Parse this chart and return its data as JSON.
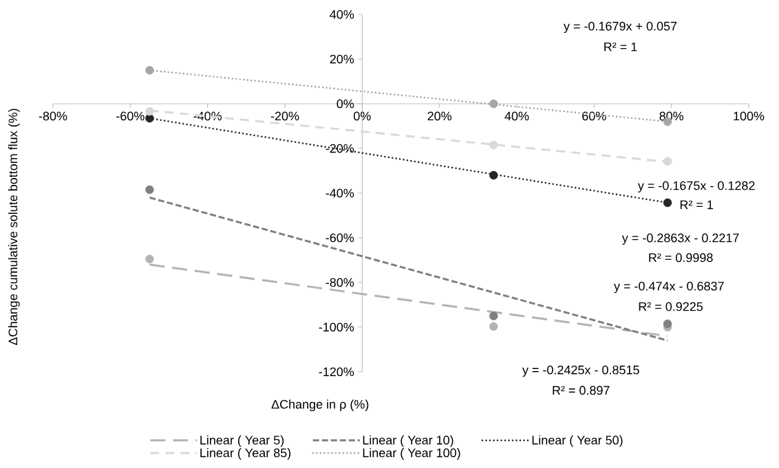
{
  "chart_data": {
    "type": "scatter",
    "xlabel": "ΔChange in ρ (%)",
    "ylabel": "ΔChange cumulative solute bottom flux (%)",
    "xlim": [
      -80,
      100
    ],
    "ylim": [
      -120,
      40
    ],
    "xticks": [
      {
        "value": -80,
        "label": "-80%"
      },
      {
        "value": -60,
        "label": "-60%"
      },
      {
        "value": -40,
        "label": "-40%"
      },
      {
        "value": -20,
        "label": "-20%"
      },
      {
        "value": 0,
        "label": "0%"
      },
      {
        "value": 20,
        "label": "20%"
      },
      {
        "value": 40,
        "label": "40%"
      },
      {
        "value": 60,
        "label": "60%"
      },
      {
        "value": 80,
        "label": "80%"
      },
      {
        "value": 100,
        "label": "100%"
      }
    ],
    "yticks": [
      {
        "value": -120,
        "label": "-120%"
      },
      {
        "value": -100,
        "label": "-100%"
      },
      {
        "value": -80,
        "label": "-80%"
      },
      {
        "value": -60,
        "label": "-60%"
      },
      {
        "value": -40,
        "label": "-40%"
      },
      {
        "value": -20,
        "label": "-20%"
      },
      {
        "value": 0,
        "label": "0%"
      },
      {
        "value": 20,
        "label": "20%"
      },
      {
        "value": 40,
        "label": "40%"
      }
    ],
    "legend": "bottom",
    "series": [
      {
        "marker": "circle",
        "color": "#b3b3b3",
        "x": [
          -55,
          34,
          79
        ],
        "values": [
          -69.5,
          -99.7,
          -100
        ]
      },
      {
        "marker": "circle",
        "color": "#808080",
        "x": [
          -55,
          34,
          79
        ],
        "values": [
          -38.5,
          -95,
          -98.5
        ]
      },
      {
        "marker": "circle",
        "color": "#262626",
        "x": [
          -55,
          34,
          79
        ],
        "values": [
          -6.5,
          -32,
          -44.3
        ]
      },
      {
        "marker": "circle",
        "color": "#d9d9d9",
        "x": [
          -55,
          34,
          79
        ],
        "values": [
          -3.4,
          -18.5,
          -25.8
        ]
      },
      {
        "marker": "circle",
        "color": "#a6a6a6",
        "x": [
          -55,
          34,
          79
        ],
        "values": [
          15,
          0,
          -8
        ]
      },
      {
        "type": "line",
        "name": "Linear ( Year 5)",
        "line_style": "dashed",
        "color": "#b3b3b3",
        "x": [
          -55,
          79
        ],
        "values": [
          -72,
          -104
        ]
      },
      {
        "type": "line",
        "name": "Linear ( Year 10)",
        "line_style": "dashed",
        "color": "#808080",
        "x": [
          -55,
          79
        ],
        "values": [
          -42,
          -106
        ]
      },
      {
        "type": "line",
        "name": "Linear ( Year 50)",
        "line_style": "dotted",
        "color": "#262626",
        "x": [
          -55,
          79
        ],
        "values": [
          -6.5,
          -44.3
        ]
      },
      {
        "type": "line",
        "name": "Linear ( Year 85)",
        "line_style": "dashed",
        "color": "#d9d9d9",
        "x": [
          -55,
          79
        ],
        "values": [
          -3,
          -26
        ]
      },
      {
        "type": "line",
        "name": "Linear ( Year 100)",
        "line_style": "dotted",
        "color": "#a6a6a6",
        "x": [
          -55,
          79
        ],
        "values": [
          15,
          -8
        ]
      }
    ],
    "annotations": [
      "y = -0.1679x + 0.057",
      "R² = 1",
      "y = -0.1675x - 0.1282",
      "R² = 1",
      "y = -0.2863x - 0.2217",
      "R² = 0.9998",
      "y = -0.474x - 0.6837",
      "R² = 0.9225",
      "y = -0.2425x - 0.8515",
      "R² = 0.897"
    ]
  }
}
